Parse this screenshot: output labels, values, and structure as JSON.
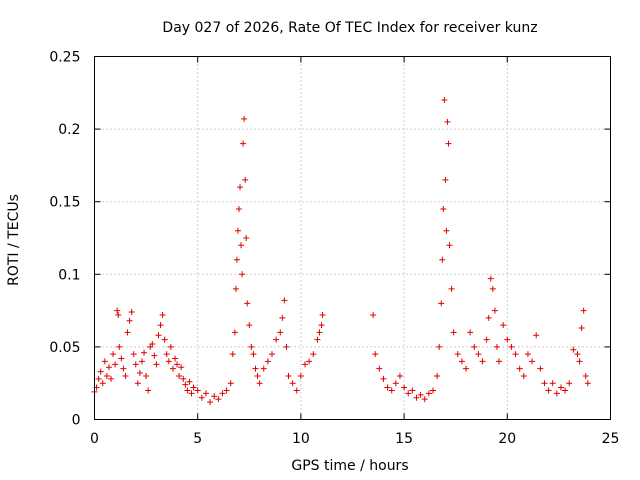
{
  "chart_data": {
    "type": "scatter",
    "title": "Day 027 of 2026, Rate Of TEC Index for receiver kunz",
    "xlabel": "GPS time / hours",
    "ylabel": "ROTI / TECUs",
    "xlim": [
      0,
      25
    ],
    "ylim": [
      0,
      0.25
    ],
    "x_ticks": [
      "0",
      "5",
      "10",
      "15",
      "20",
      "25"
    ],
    "y_ticks": [
      "0",
      "0.05",
      "0.1",
      "0.15",
      "0.2",
      "0.25"
    ],
    "grid": true,
    "marker": "plus",
    "color": "#e00000",
    "series": [
      {
        "values": [
          [
            0.0,
            0.019
          ],
          [
            0.1,
            0.022
          ],
          [
            0.2,
            0.028
          ],
          [
            0.3,
            0.033
          ],
          [
            0.4,
            0.025
          ],
          [
            0.5,
            0.04
          ],
          [
            0.6,
            0.03
          ],
          [
            0.7,
            0.036
          ],
          [
            0.8,
            0.028
          ],
          [
            0.9,
            0.045
          ],
          [
            1.0,
            0.038
          ],
          [
            1.1,
            0.075
          ],
          [
            1.15,
            0.072
          ],
          [
            1.2,
            0.05
          ],
          [
            1.3,
            0.042
          ],
          [
            1.4,
            0.035
          ],
          [
            1.5,
            0.03
          ],
          [
            1.6,
            0.06
          ],
          [
            1.7,
            0.068
          ],
          [
            1.8,
            0.074
          ],
          [
            1.9,
            0.045
          ],
          [
            2.0,
            0.038
          ],
          [
            2.1,
            0.025
          ],
          [
            2.2,
            0.032
          ],
          [
            2.3,
            0.04
          ],
          [
            2.4,
            0.046
          ],
          [
            2.5,
            0.03
          ],
          [
            2.6,
            0.02
          ],
          [
            2.7,
            0.05
          ],
          [
            2.8,
            0.052
          ],
          [
            2.9,
            0.044
          ],
          [
            3.0,
            0.038
          ],
          [
            3.1,
            0.058
          ],
          [
            3.2,
            0.065
          ],
          [
            3.3,
            0.072
          ],
          [
            3.4,
            0.055
          ],
          [
            3.5,
            0.045
          ],
          [
            3.6,
            0.04
          ],
          [
            3.7,
            0.05
          ],
          [
            3.8,
            0.035
          ],
          [
            3.9,
            0.042
          ],
          [
            4.0,
            0.038
          ],
          [
            4.1,
            0.03
          ],
          [
            4.2,
            0.036
          ],
          [
            4.3,
            0.028
          ],
          [
            4.4,
            0.024
          ],
          [
            4.5,
            0.02
          ],
          [
            4.6,
            0.026
          ],
          [
            4.7,
            0.018
          ],
          [
            4.8,
            0.022
          ],
          [
            5.0,
            0.02
          ],
          [
            5.2,
            0.015
          ],
          [
            5.4,
            0.018
          ],
          [
            5.6,
            0.012
          ],
          [
            5.8,
            0.016
          ],
          [
            6.0,
            0.014
          ],
          [
            6.2,
            0.018
          ],
          [
            6.4,
            0.02
          ],
          [
            6.6,
            0.025
          ],
          [
            6.7,
            0.045
          ],
          [
            6.8,
            0.06
          ],
          [
            6.85,
            0.09
          ],
          [
            6.9,
            0.11
          ],
          [
            6.95,
            0.13
          ],
          [
            7.0,
            0.145
          ],
          [
            7.05,
            0.16
          ],
          [
            7.1,
            0.12
          ],
          [
            7.15,
            0.1
          ],
          [
            7.2,
            0.19
          ],
          [
            7.25,
            0.207
          ],
          [
            7.3,
            0.165
          ],
          [
            7.35,
            0.125
          ],
          [
            7.4,
            0.08
          ],
          [
            7.5,
            0.065
          ],
          [
            7.6,
            0.05
          ],
          [
            7.7,
            0.045
          ],
          [
            7.8,
            0.035
          ],
          [
            7.9,
            0.03
          ],
          [
            8.0,
            0.025
          ],
          [
            8.2,
            0.035
          ],
          [
            8.4,
            0.04
          ],
          [
            8.6,
            0.045
          ],
          [
            8.8,
            0.055
          ],
          [
            9.0,
            0.06
          ],
          [
            9.1,
            0.07
          ],
          [
            9.2,
            0.082
          ],
          [
            9.3,
            0.05
          ],
          [
            9.4,
            0.03
          ],
          [
            9.6,
            0.025
          ],
          [
            9.8,
            0.02
          ],
          [
            10.0,
            0.03
          ],
          [
            10.2,
            0.038
          ],
          [
            10.4,
            0.04
          ],
          [
            10.6,
            0.045
          ],
          [
            10.8,
            0.055
          ],
          [
            10.9,
            0.06
          ],
          [
            11.0,
            0.065
          ],
          [
            11.05,
            0.072
          ],
          [
            13.5,
            0.072
          ],
          [
            13.6,
            0.045
          ],
          [
            13.8,
            0.035
          ],
          [
            14.0,
            0.028
          ],
          [
            14.2,
            0.022
          ],
          [
            14.4,
            0.02
          ],
          [
            14.6,
            0.025
          ],
          [
            14.8,
            0.03
          ],
          [
            15.0,
            0.022
          ],
          [
            15.2,
            0.018
          ],
          [
            15.4,
            0.02
          ],
          [
            15.6,
            0.015
          ],
          [
            15.8,
            0.017
          ],
          [
            16.0,
            0.014
          ],
          [
            16.2,
            0.018
          ],
          [
            16.4,
            0.02
          ],
          [
            16.6,
            0.03
          ],
          [
            16.7,
            0.05
          ],
          [
            16.8,
            0.08
          ],
          [
            16.85,
            0.11
          ],
          [
            16.9,
            0.145
          ],
          [
            16.95,
            0.22
          ],
          [
            17.0,
            0.165
          ],
          [
            17.05,
            0.13
          ],
          [
            17.1,
            0.205
          ],
          [
            17.15,
            0.19
          ],
          [
            17.2,
            0.12
          ],
          [
            17.3,
            0.09
          ],
          [
            17.4,
            0.06
          ],
          [
            17.6,
            0.045
          ],
          [
            17.8,
            0.04
          ],
          [
            18.0,
            0.035
          ],
          [
            18.2,
            0.06
          ],
          [
            18.4,
            0.05
          ],
          [
            18.6,
            0.045
          ],
          [
            18.8,
            0.04
          ],
          [
            19.0,
            0.055
          ],
          [
            19.1,
            0.07
          ],
          [
            19.2,
            0.097
          ],
          [
            19.3,
            0.09
          ],
          [
            19.4,
            0.075
          ],
          [
            19.5,
            0.05
          ],
          [
            19.6,
            0.04
          ],
          [
            19.8,
            0.065
          ],
          [
            20.0,
            0.055
          ],
          [
            20.2,
            0.05
          ],
          [
            20.4,
            0.045
          ],
          [
            20.6,
            0.035
          ],
          [
            20.8,
            0.03
          ],
          [
            21.0,
            0.045
          ],
          [
            21.2,
            0.04
          ],
          [
            21.4,
            0.058
          ],
          [
            21.6,
            0.035
          ],
          [
            21.8,
            0.025
          ],
          [
            22.0,
            0.02
          ],
          [
            22.2,
            0.025
          ],
          [
            22.4,
            0.018
          ],
          [
            22.6,
            0.022
          ],
          [
            22.8,
            0.02
          ],
          [
            23.0,
            0.025
          ],
          [
            23.2,
            0.048
          ],
          [
            23.4,
            0.045
          ],
          [
            23.5,
            0.04
          ],
          [
            23.6,
            0.063
          ],
          [
            23.7,
            0.075
          ],
          [
            23.8,
            0.03
          ],
          [
            23.9,
            0.025
          ]
        ]
      }
    ]
  }
}
